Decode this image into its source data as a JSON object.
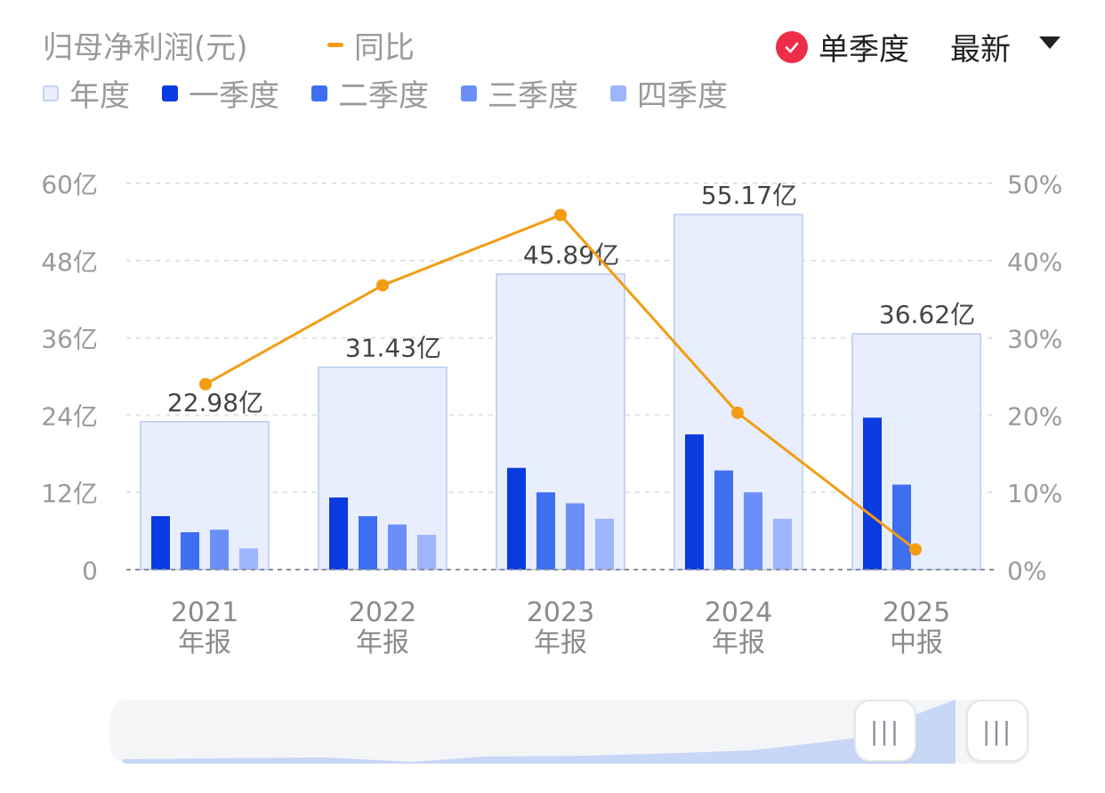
{
  "header": {
    "title": "归母净利润(元)",
    "yoy_label": "同比",
    "yoy_color": "#f39c12",
    "single_season_label": "单季度",
    "single_season_checked": true,
    "check_icon": "check-circle-icon",
    "latest_label": "最新",
    "caret_icon": "caret-down-icon"
  },
  "legend": [
    {
      "label": "年度",
      "color": "#e8eefd"
    },
    {
      "label": "一季度",
      "color": "#0a3be0"
    },
    {
      "label": "二季度",
      "color": "#3d6ff0"
    },
    {
      "label": "三季度",
      "color": "#6a90f7"
    },
    {
      "label": "四季度",
      "color": "#9db6fb"
    }
  ],
  "chart_data": {
    "type": "bar",
    "categories": [
      [
        "2021",
        "年报"
      ],
      [
        "2022",
        "年报"
      ],
      [
        "2023",
        "年报"
      ],
      [
        "2024",
        "年报"
      ],
      [
        "2025",
        "中报"
      ]
    ],
    "annual": {
      "name": "年度",
      "values": [
        22.98,
        31.43,
        45.89,
        55.17,
        36.62
      ],
      "labels": [
        "22.98亿",
        "31.43亿",
        "45.89亿",
        "55.17亿",
        "36.62亿"
      ]
    },
    "quarters": [
      {
        "name": "一季度",
        "values": [
          8.3,
          11.2,
          15.8,
          21.0,
          23.6
        ]
      },
      {
        "name": "二季度",
        "values": [
          5.8,
          8.3,
          12.0,
          15.4,
          13.2
        ]
      },
      {
        "name": "三季度",
        "values": [
          6.2,
          7.0,
          10.3,
          12.0,
          null
        ]
      },
      {
        "name": "四季度",
        "values": [
          3.3,
          5.4,
          7.9,
          7.9,
          null
        ]
      }
    ],
    "yoy": {
      "name": "同比",
      "values": [
        24.0,
        36.8,
        45.9,
        20.3,
        2.6
      ]
    },
    "ylim_left": [
      0,
      60
    ],
    "yticks_left": [
      "0",
      "12亿",
      "24亿",
      "36亿",
      "48亿",
      "60亿"
    ],
    "ylim_right": [
      0,
      50
    ],
    "yticks_right": [
      "0%",
      "10%",
      "20%",
      "30%",
      "40%",
      "50%"
    ],
    "grid": true
  },
  "slider": {
    "left_handle_icon": "drag-handle-icon",
    "right_handle_icon": "drag-handle-icon",
    "grip": "|||"
  }
}
